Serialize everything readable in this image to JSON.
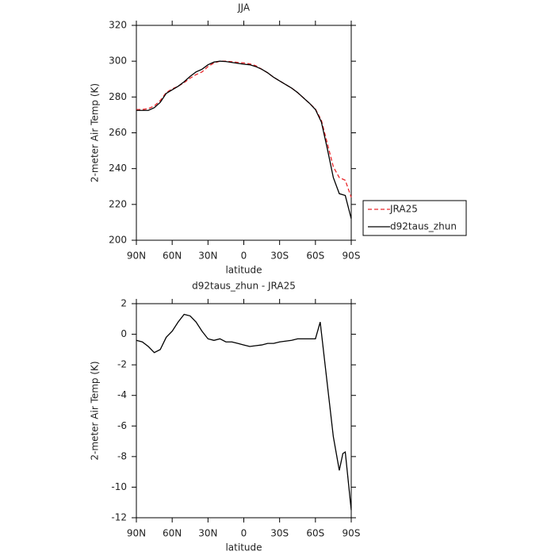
{
  "chart_data": [
    {
      "type": "line",
      "title": "JJA",
      "xlabel": "latitude",
      "ylabel": "2-meter Air Temp (K)",
      "x": [
        90,
        85,
        80,
        75,
        70,
        65,
        60,
        55,
        50,
        45,
        40,
        35,
        30,
        25,
        20,
        15,
        10,
        5,
        0,
        -5,
        -10,
        -15,
        -20,
        -25,
        -30,
        -35,
        -40,
        -45,
        -50,
        -55,
        -60,
        -65,
        -70,
        -75,
        -80,
        -85,
        -90
      ],
      "series": [
        {
          "name": "JRA25",
          "color": "#e8262a",
          "dash": "dashed",
          "values": [
            273,
            273,
            273.5,
            275,
            278,
            282.5,
            284.5,
            286,
            288,
            290.5,
            292.5,
            294,
            297,
            299,
            300,
            300,
            299.7,
            299.3,
            299,
            298.5,
            297.5,
            295.5,
            293.5,
            291,
            289,
            287,
            285,
            282.5,
            279.5,
            276.5,
            273.3,
            267,
            254,
            241,
            235,
            233.5,
            224
          ]
        },
        {
          "name": "d92taus_zhun",
          "color": "#000000",
          "dash": "solid",
          "values": [
            272.5,
            272.5,
            272.5,
            274,
            277,
            282,
            284,
            286,
            288.5,
            291.5,
            294,
            295.5,
            298,
            299.5,
            300,
            299.8,
            299.3,
            298.8,
            298.3,
            298,
            297,
            295.5,
            293.5,
            291,
            289,
            287,
            285,
            282.5,
            279.5,
            276.5,
            273,
            266,
            251,
            235,
            226,
            225,
            212
          ]
        }
      ],
      "xlim": [
        90,
        -90
      ],
      "xticks": [
        {
          "value": 90,
          "label": "90N"
        },
        {
          "value": 60,
          "label": "60N"
        },
        {
          "value": 30,
          "label": "30N"
        },
        0,
        {
          "value": -30,
          "label": "30S"
        },
        {
          "value": -60,
          "label": "60S"
        },
        {
          "value": -90,
          "label": "90S"
        }
      ],
      "ylim": [
        200,
        320
      ],
      "yticks": [
        200,
        220,
        240,
        260,
        280,
        300,
        320
      ],
      "legend": "right"
    },
    {
      "type": "line",
      "title": "d92taus_zhun - JRA25",
      "xlabel": "latitude",
      "ylabel": "2-meter Air Temp (K)",
      "x": [
        90,
        85,
        80,
        75,
        70,
        65,
        60,
        55,
        50,
        45,
        40,
        35,
        30,
        25,
        20,
        15,
        10,
        5,
        0,
        -5,
        -10,
        -15,
        -20,
        -25,
        -30,
        -35,
        -40,
        -45,
        -50,
        -55,
        -60,
        -64,
        -70,
        -75,
        -80,
        -83,
        -85,
        -90
      ],
      "series": [
        {
          "color": "#000000",
          "dash": "solid",
          "values": [
            -0.4,
            -0.5,
            -0.8,
            -1.2,
            -1.0,
            -0.2,
            0.2,
            0.8,
            1.3,
            1.2,
            0.8,
            0.2,
            -0.3,
            -0.4,
            -0.3,
            -0.5,
            -0.5,
            -0.6,
            -0.7,
            -0.8,
            -0.75,
            -0.7,
            -0.6,
            -0.6,
            -0.5,
            -0.45,
            -0.4,
            -0.3,
            -0.3,
            -0.3,
            -0.3,
            0.8,
            -3.3,
            -6.7,
            -8.9,
            -7.8,
            -7.7,
            -11.5
          ]
        }
      ],
      "xlim": [
        90,
        -90
      ],
      "xticks": [
        {
          "value": 90,
          "label": "90N"
        },
        {
          "value": 60,
          "label": "60N"
        },
        {
          "value": 30,
          "label": "30N"
        },
        0,
        {
          "value": -30,
          "label": "30S"
        },
        {
          "value": -60,
          "label": "60S"
        },
        {
          "value": -90,
          "label": "90S"
        }
      ],
      "ylim": [
        -12,
        2
      ],
      "yticks": [
        -12,
        -10,
        -8,
        -6,
        -4,
        -2,
        0,
        2
      ]
    }
  ]
}
